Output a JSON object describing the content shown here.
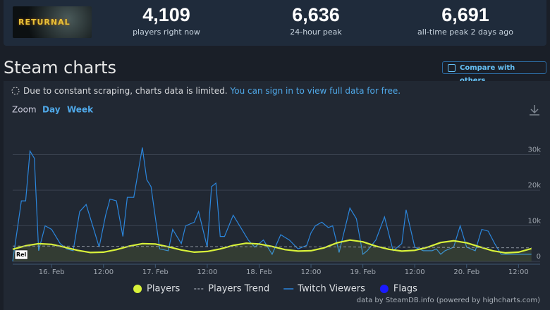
{
  "header": {
    "game_title": "RETURNAL",
    "stats": [
      {
        "value": "4,109",
        "label": "players right now"
      },
      {
        "value": "6,636",
        "label": "24-hour peak"
      },
      {
        "value": "6,691",
        "label": "all-time peak 2 days ago"
      }
    ]
  },
  "section_title": "Steam charts",
  "compare_button": "Compare with others...",
  "notice": {
    "text": "Due to constant scraping, charts data is limited.",
    "link": "You can sign in to view full data for free."
  },
  "zoom": {
    "label": "Zoom",
    "options": [
      "Day",
      "Week"
    ]
  },
  "chart_data": {
    "type": "line",
    "xlim": [
      -9,
      113
    ],
    "xticks": [
      {
        "value": 0,
        "label": "16. Feb"
      },
      {
        "value": 12,
        "label": "12:00"
      },
      {
        "value": 24,
        "label": "17. Feb"
      },
      {
        "value": 36,
        "label": "12:00"
      },
      {
        "value": 48,
        "label": "18. Feb"
      },
      {
        "value": 60,
        "label": "12:00"
      },
      {
        "value": 72,
        "label": "19. Feb"
      },
      {
        "value": 84,
        "label": "12:00"
      },
      {
        "value": 96,
        "label": "20. Feb"
      },
      {
        "value": 108,
        "label": "12:00"
      }
    ],
    "ylim": [
      0,
      40000
    ],
    "yticks": [
      0,
      {
        "value": 10000,
        "label": "10k"
      },
      {
        "value": 20000,
        "label": "20k"
      },
      {
        "value": 30000,
        "label": "30k"
      }
    ],
    "grid": true,
    "legend": "bottom",
    "x": [
      -9,
      -6,
      -3,
      0,
      3,
      6,
      9,
      12,
      15,
      18,
      21,
      24,
      27,
      30,
      33,
      36,
      39,
      42,
      45,
      48,
      51,
      54,
      57,
      60,
      63,
      66,
      69,
      72,
      75,
      78,
      81,
      84,
      87,
      90,
      93,
      96,
      99,
      102,
      105,
      108,
      111
    ],
    "series": [
      {
        "name": "Players",
        "color": "#d9f23a",
        "style": "area",
        "values": [
          3400,
          4400,
          5000,
          4800,
          4000,
          3100,
          2500,
          2600,
          3300,
          4300,
          5000,
          4900,
          4100,
          3200,
          2600,
          2800,
          3500,
          4500,
          5100,
          4900,
          4200,
          3300,
          2900,
          3000,
          3800,
          5200,
          6000,
          5500,
          4300,
          3400,
          2900,
          3100,
          4000,
          5300,
          5800,
          5200,
          4100,
          3000,
          2400,
          2600,
          3600
        ]
      },
      {
        "name": "Players Trend",
        "color": "#8c939e",
        "style": "dashed",
        "values": [
          4300,
          4300,
          4300,
          4300,
          4300,
          4250,
          4250,
          4250,
          4250,
          4200,
          4200,
          4200,
          4200,
          4200,
          4150,
          4150,
          4150,
          4150,
          4100,
          4100,
          4100,
          4100,
          4100,
          4050,
          4050,
          4050,
          4050,
          4000,
          4000,
          4000,
          4000,
          3950,
          3950,
          3950,
          3900,
          3900,
          3900,
          3850,
          3850,
          3800,
          3800
        ]
      },
      {
        "name": "Twitch Viewers",
        "color": "#2b86dc",
        "style": "line",
        "x": [
          -9,
          -7,
          -6,
          -5,
          -4,
          -3,
          -1.5,
          0,
          2,
          3.5,
          5,
          6.5,
          8,
          10,
          11,
          12.5,
          13.5,
          15,
          16.5,
          17.5,
          19,
          21,
          22,
          23,
          25,
          27,
          28,
          30,
          31,
          33,
          34,
          36,
          37,
          38,
          39,
          40,
          42,
          44,
          45.5,
          47,
          49,
          51,
          53,
          55,
          57,
          59,
          60,
          61,
          62.5,
          64,
          65,
          66.5,
          68,
          69,
          70.5,
          72,
          73,
          75,
          77,
          79,
          81,
          82,
          84,
          86,
          88,
          89,
          90,
          91,
          93,
          94.5,
          96,
          98,
          99.5,
          101,
          102.5,
          104,
          106,
          109,
          111
        ],
        "values": [
          0,
          17000,
          17000,
          31000,
          29000,
          3000,
          10000,
          9000,
          5000,
          3500,
          3000,
          14000,
          16000,
          8000,
          4000,
          13000,
          17500,
          17000,
          7000,
          18000,
          18000,
          32000,
          23000,
          21000,
          3500,
          3000,
          9000,
          5000,
          10000,
          11000,
          14000,
          4000,
          21000,
          22000,
          7000,
          7000,
          13000,
          9000,
          6000,
          4000,
          6000,
          2000,
          7500,
          6000,
          3500,
          4500,
          8000,
          10000,
          11000,
          9500,
          10000,
          2500,
          10000,
          15000,
          12000,
          2000,
          3000,
          6000,
          12500,
          3000,
          5000,
          14500,
          4000,
          3000,
          3000,
          3500,
          2000,
          3000,
          4000,
          10000,
          4000,
          3000,
          9000,
          8500,
          5000,
          2000,
          2000,
          2000,
          2000
        ]
      }
    ],
    "flags": {
      "name": "Flags",
      "color": "#1a1aff",
      "items": [
        {
          "x": -8,
          "label": "Rel"
        }
      ]
    }
  },
  "credit": "data by SteamDB.info (powered by highcharts.com)"
}
